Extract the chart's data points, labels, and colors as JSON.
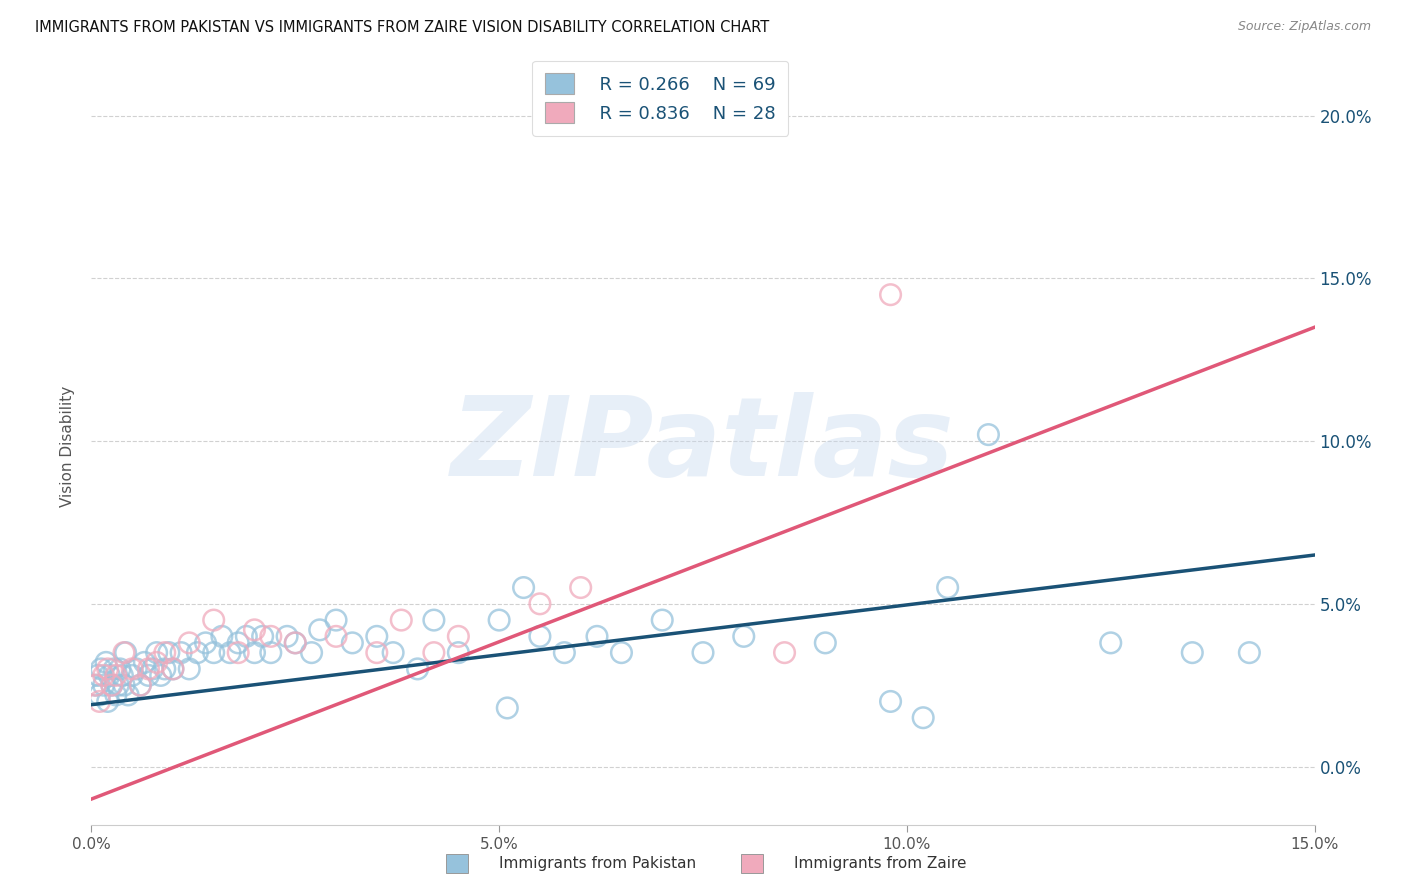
{
  "title": "IMMIGRANTS FROM PAKISTAN VS IMMIGRANTS FROM ZAIRE VISION DISABILITY CORRELATION CHART",
  "source": "Source: ZipAtlas.com",
  "ylabel": "Vision Disability",
  "xlim": [
    0.0,
    15.0
  ],
  "ylim": [
    -1.8,
    21.5
  ],
  "pakistan_R": 0.266,
  "pakistan_N": 69,
  "zaire_R": 0.836,
  "zaire_N": 28,
  "pakistan_color": "#96C2DC",
  "zaire_color": "#F0AABC",
  "pakistan_line_color": "#1A5276",
  "zaire_line_color": "#E05878",
  "legend_label_pakistan": "Immigrants from Pakistan",
  "legend_label_zaire": "Immigrants from Zaire",
  "watermark": "ZIPatlas",
  "background_color": "#FFFFFF",
  "grid_color": "#CCCCCC",
  "y_ticks": [
    0.0,
    5.0,
    10.0,
    15.0,
    20.0
  ],
  "x_ticks": [
    0.0,
    5.0,
    10.0,
    15.0
  ],
  "pak_x": [
    0.05,
    0.08,
    0.1,
    0.12,
    0.15,
    0.18,
    0.2,
    0.22,
    0.25,
    0.28,
    0.3,
    0.33,
    0.35,
    0.38,
    0.4,
    0.42,
    0.45,
    0.5,
    0.55,
    0.6,
    0.65,
    0.7,
    0.75,
    0.8,
    0.85,
    0.9,
    0.95,
    1.0,
    1.1,
    1.2,
    1.3,
    1.4,
    1.5,
    1.6,
    1.7,
    1.8,
    1.9,
    2.0,
    2.1,
    2.2,
    2.4,
    2.5,
    2.7,
    2.8,
    3.0,
    3.2,
    3.5,
    3.7,
    4.0,
    4.2,
    4.5,
    5.0,
    5.3,
    5.5,
    5.8,
    6.2,
    6.5,
    7.0,
    7.5,
    8.0,
    9.0,
    10.5,
    11.0,
    12.5,
    13.5,
    14.2,
    5.1,
    9.8,
    10.2
  ],
  "pak_y": [
    2.5,
    2.8,
    2.2,
    3.0,
    2.5,
    3.2,
    2.0,
    2.8,
    2.5,
    3.0,
    2.2,
    2.5,
    3.0,
    2.8,
    2.5,
    3.5,
    2.2,
    2.8,
    3.0,
    2.5,
    3.2,
    2.8,
    3.0,
    3.5,
    2.8,
    3.0,
    3.5,
    3.0,
    3.5,
    3.0,
    3.5,
    3.8,
    3.5,
    4.0,
    3.5,
    3.8,
    4.0,
    3.5,
    4.0,
    3.5,
    4.0,
    3.8,
    3.5,
    4.2,
    4.5,
    3.8,
    4.0,
    3.5,
    3.0,
    4.5,
    3.5,
    4.5,
    5.5,
    4.0,
    3.5,
    4.0,
    3.5,
    4.5,
    3.5,
    4.0,
    3.8,
    5.5,
    10.2,
    3.8,
    3.5,
    3.5,
    1.8,
    2.0,
    1.5
  ],
  "zaire_x": [
    0.05,
    0.1,
    0.15,
    0.2,
    0.25,
    0.3,
    0.4,
    0.5,
    0.6,
    0.7,
    0.8,
    0.9,
    1.0,
    1.2,
    1.5,
    1.8,
    2.0,
    2.2,
    2.5,
    3.0,
    3.5,
    3.8,
    4.2,
    4.5,
    5.5,
    6.0,
    9.8,
    8.5
  ],
  "zaire_y": [
    2.5,
    2.0,
    2.8,
    3.0,
    2.5,
    2.8,
    3.5,
    3.0,
    2.5,
    3.0,
    3.2,
    3.5,
    3.0,
    3.8,
    4.5,
    3.5,
    4.2,
    4.0,
    3.8,
    4.0,
    3.5,
    4.5,
    3.5,
    4.0,
    5.0,
    5.5,
    14.5,
    3.5
  ],
  "pak_line_x0": 0.0,
  "pak_line_y0": 1.9,
  "pak_line_x1": 15.0,
  "pak_line_y1": 6.5,
  "zaire_line_x0": 0.0,
  "zaire_line_y0": -1.0,
  "zaire_line_x1": 15.0,
  "zaire_line_y1": 13.5
}
